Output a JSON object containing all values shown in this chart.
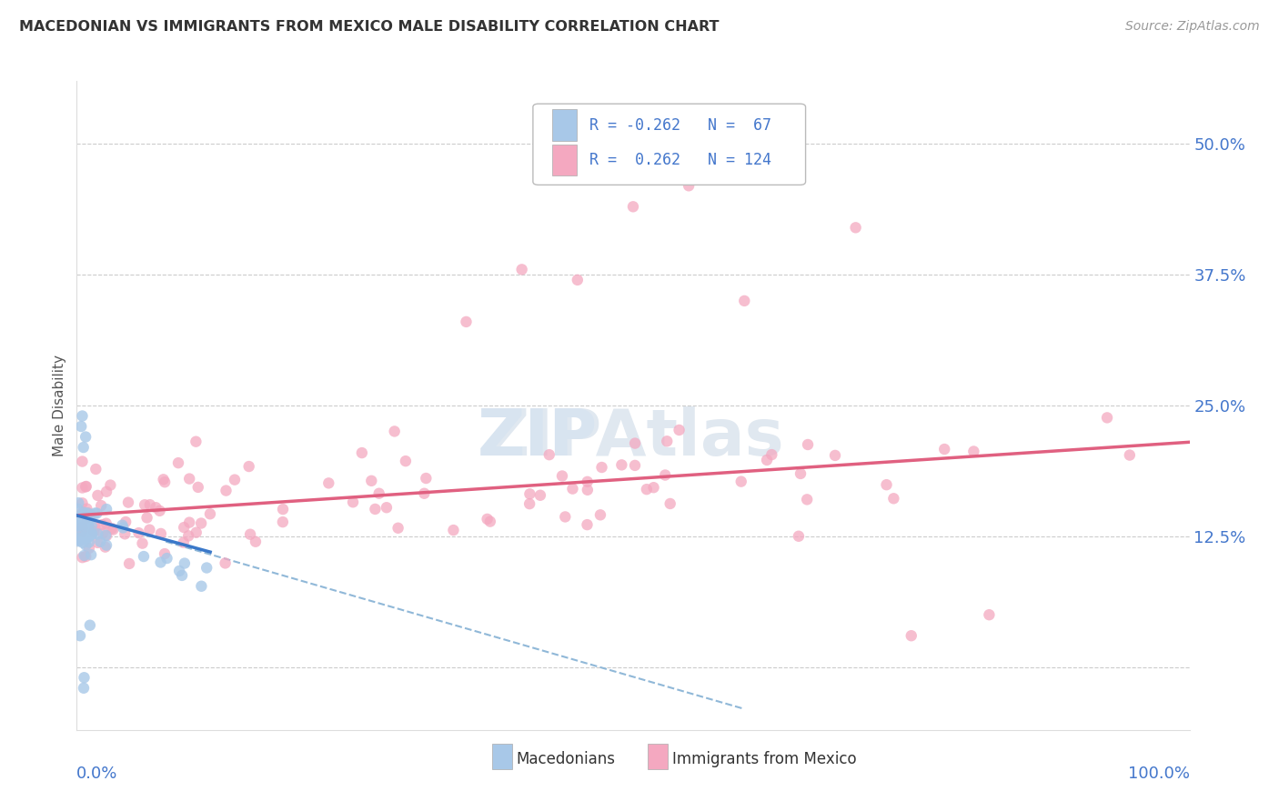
{
  "title": "MACEDONIAN VS IMMIGRANTS FROM MEXICO MALE DISABILITY CORRELATION CHART",
  "source_text": "Source: ZipAtlas.com",
  "ylabel": "Male Disability",
  "y_ticks": [
    0.0,
    0.125,
    0.25,
    0.375,
    0.5
  ],
  "y_tick_labels": [
    "",
    "12.5%",
    "25.0%",
    "37.5%",
    "50.0%"
  ],
  "x_range": [
    0.0,
    1.0
  ],
  "y_range": [
    -0.06,
    0.56
  ],
  "r_macedonian": -0.262,
  "n_macedonian": 67,
  "r_mexico": 0.262,
  "n_mexico": 124,
  "color_macedonian": "#a8c8e8",
  "color_mexico": "#f4a8c0",
  "color_macedonian_line": "#3a78c9",
  "color_mexico_line": "#e06080",
  "color_dashed": "#90b8d8",
  "legend_label_macedonian": "Macedonians",
  "legend_label_mexico": "Immigrants from Mexico",
  "background_color": "#ffffff",
  "grid_color": "#cccccc",
  "title_color": "#333333",
  "axis_label_color": "#4477cc",
  "watermark_color": "#e0e8f0",
  "mac_line_x0": 0.0,
  "mac_line_x1": 0.12,
  "mac_line_y0": 0.145,
  "mac_line_y1": 0.11,
  "dash_line_x0": 0.08,
  "dash_line_x1": 0.6,
  "dash_line_y0": 0.12,
  "dash_line_y1": -0.04,
  "mex_line_x0": 0.0,
  "mex_line_x1": 1.0,
  "mex_line_y0": 0.145,
  "mex_line_y1": 0.215
}
